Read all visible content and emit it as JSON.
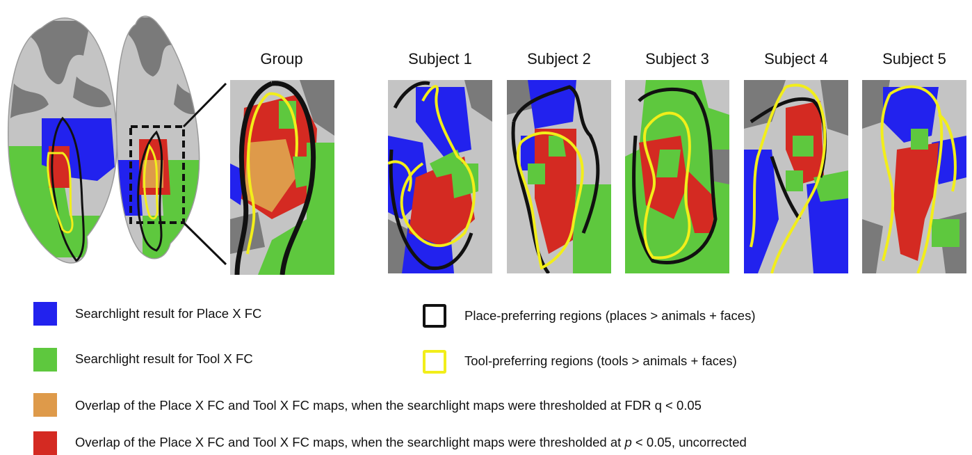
{
  "panels": {
    "group": "Group",
    "subjects": [
      "Subject 1",
      "Subject 2",
      "Subject 3",
      "Subject 4",
      "Subject 5"
    ]
  },
  "colors": {
    "place": "#2222ee",
    "tool": "#5ec83e",
    "overlap_fdr": "#de9a4a",
    "overlap_unc": "#d42a22",
    "place_outline": "#111111",
    "tool_outline": "#f2ee1a",
    "cortex_light": "#c4c4c4",
    "cortex_dark": "#7a7a7a"
  },
  "legend": {
    "place_fc": "Searchlight result for Place X FC",
    "tool_fc": "Searchlight result for Tool X FC",
    "place_regions": "Place-preferring regions (places > animals + faces)",
    "tool_regions": "Tool-preferring regions (tools > animals + faces)",
    "overlap_fdr": "Overlap of the Place X FC and Tool X FC maps, when the searchlight maps were thresholded at FDR q < 0.05",
    "overlap_unc_prefix": "Overlap of the Place X FC and Tool X FC maps, when the searchlight maps were thresholded at ",
    "overlap_unc_p": "p",
    "overlap_unc_suffix": " < 0.05, uncorrected"
  }
}
